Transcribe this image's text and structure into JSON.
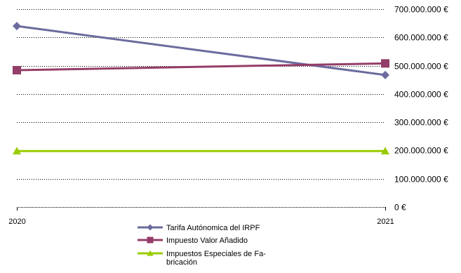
{
  "chart_data": {
    "type": "line",
    "categories": [
      "2020",
      "2021"
    ],
    "series": [
      {
        "name": "Tarifa Autónomica del IRPF",
        "values": [
          640000000,
          467000000
        ],
        "color": "#6b6b9e",
        "marker": "diamond"
      },
      {
        "name": "Impuesto Valor Añadido",
        "values": [
          484000000,
          508000000
        ],
        "color": "#943d68",
        "marker": "square"
      },
      {
        "name": "Impuestos Especiales de Fa-bricación",
        "legend_lines": [
          "Impuestos Especiales de Fa-",
          "bricación"
        ],
        "values": [
          198000000,
          198000000
        ],
        "color": "#99cc00",
        "marker": "triangle"
      }
    ],
    "ylim": [
      0,
      700000000
    ],
    "yticks": [
      0,
      100000000,
      200000000,
      300000000,
      400000000,
      500000000,
      600000000,
      700000000
    ],
    "ytick_labels": [
      "0 €",
      "100.000.000 €",
      "200.000.000 €",
      "300.000.000 €",
      "400.000.000 €",
      "500.000.000 €",
      "600.000.000 €",
      "700.000.000 €"
    ],
    "grid": true,
    "grid_style": "dotted",
    "legend_position": "bottom-center"
  }
}
